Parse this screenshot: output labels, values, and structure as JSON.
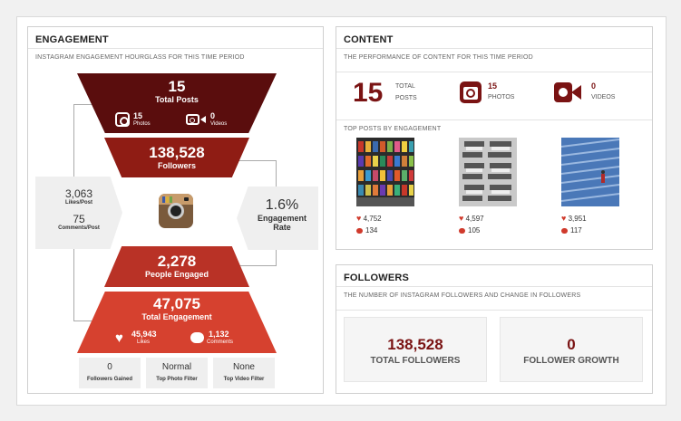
{
  "engagement": {
    "title": "ENGAGEMENT",
    "subtitle": "INSTAGRAM ENGAGEMENT HOURGLASS FOR THIS TIME PERIOD",
    "total_posts": {
      "value": "15",
      "label": "Total Posts",
      "photos": "15",
      "photos_label": "Photos",
      "videos": "0",
      "videos_label": "Videos"
    },
    "followers": {
      "value": "138,528",
      "label": "Followers"
    },
    "likes_per_post": {
      "value": "3,063",
      "label": "Likes/Post"
    },
    "comments_per_post": {
      "value": "75",
      "label": "Comments/Post"
    },
    "engagement_rate": {
      "value": "1.6%",
      "label1": "Engagement",
      "label2": "Rate"
    },
    "people_engaged": {
      "value": "2,278",
      "label": "People Engaged"
    },
    "total_engagement": {
      "value": "47,075",
      "label": "Total Engagement",
      "likes": "45,943",
      "likes_label": "Likes",
      "comments": "1,132",
      "comments_label": "Comments"
    },
    "mini": [
      {
        "value": "0",
        "label": "Followers Gained"
      },
      {
        "value": "Normal",
        "label": "Top Photo Filter"
      },
      {
        "value": "None",
        "label": "Top Video Filter"
      }
    ],
    "colors": {
      "dark": "#5a0d0d",
      "mid": "#8f1c14",
      "red": "#b93226",
      "bright": "#d6412f"
    }
  },
  "content": {
    "title": "CONTENT",
    "subtitle": "THE PERFORMANCE OF CONTENT FOR THIS TIME PERIOD",
    "posts": {
      "value": "15",
      "label1": "TOTAL",
      "label2": "POSTS"
    },
    "photos": {
      "value": "15",
      "label": "PHOTOS"
    },
    "videos": {
      "value": "0",
      "label": "VIDEOS"
    },
    "top_label": "TOP POSTS BY ENGAGEMENT",
    "top_posts": [
      {
        "likes": "4,752",
        "comments": "134"
      },
      {
        "likes": "4,597",
        "comments": "105"
      },
      {
        "likes": "3,951",
        "comments": "117"
      }
    ]
  },
  "followers": {
    "title": "FOLLOWERS",
    "subtitle": "THE NUMBER OF INSTAGRAM FOLLOWERS AND CHANGE IN FOLLOWERS",
    "total": {
      "value": "138,528",
      "label": "TOTAL FOLLOWERS"
    },
    "growth": {
      "value": "0",
      "label": "FOLLOWER GROWTH"
    }
  }
}
